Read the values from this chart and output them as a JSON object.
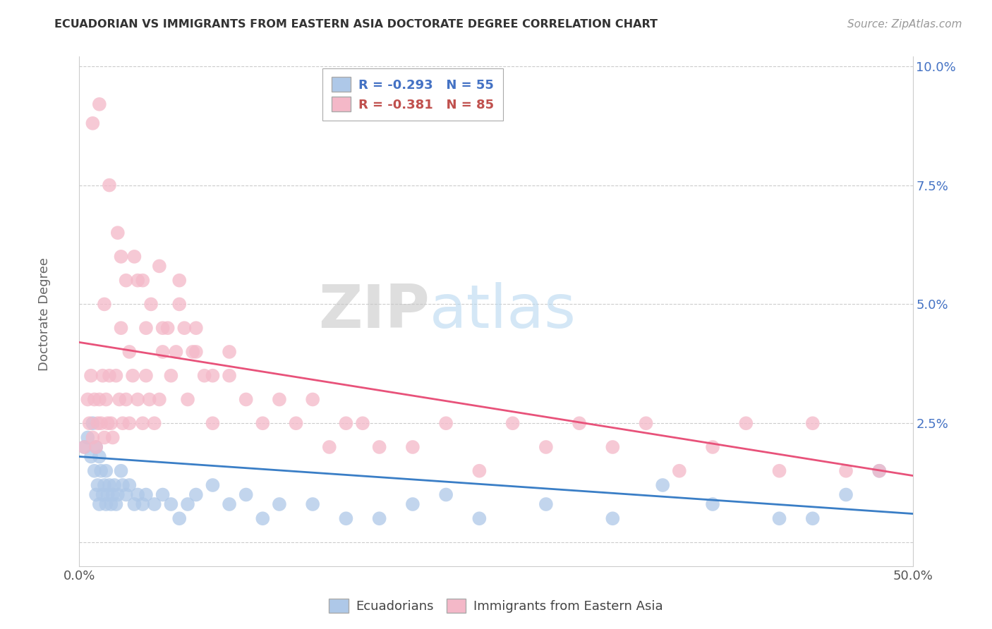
{
  "title": "ECUADORIAN VS IMMIGRANTS FROM EASTERN ASIA DOCTORATE DEGREE CORRELATION CHART",
  "source": "Source: ZipAtlas.com",
  "ylabel": "Doctorate Degree",
  "xlim": [
    0.0,
    0.5
  ],
  "ylim": [
    -0.005,
    0.102
  ],
  "yticks": [
    0.0,
    0.025,
    0.05,
    0.075,
    0.1
  ],
  "ytick_labels": [
    "",
    "2.5%",
    "5.0%",
    "7.5%",
    "10.0%"
  ],
  "legend_r1": "R = -0.293",
  "legend_n1": "N = 55",
  "legend_r2": "R = -0.381",
  "legend_n2": "N = 85",
  "blue_color": "#aec8e8",
  "pink_color": "#f4b8c8",
  "blue_line_color": "#3a7ec6",
  "pink_line_color": "#e8527a",
  "watermark_zip": "ZIP",
  "watermark_atlas": "atlas",
  "blue_x": [
    0.003,
    0.005,
    0.007,
    0.008,
    0.009,
    0.01,
    0.01,
    0.011,
    0.012,
    0.012,
    0.013,
    0.014,
    0.015,
    0.016,
    0.016,
    0.017,
    0.018,
    0.019,
    0.02,
    0.021,
    0.022,
    0.023,
    0.025,
    0.026,
    0.028,
    0.03,
    0.033,
    0.035,
    0.038,
    0.04,
    0.045,
    0.05,
    0.055,
    0.06,
    0.065,
    0.07,
    0.08,
    0.09,
    0.1,
    0.11,
    0.12,
    0.14,
    0.16,
    0.18,
    0.2,
    0.22,
    0.24,
    0.28,
    0.32,
    0.35,
    0.38,
    0.42,
    0.44,
    0.46,
    0.48
  ],
  "blue_y": [
    0.02,
    0.022,
    0.018,
    0.025,
    0.015,
    0.01,
    0.02,
    0.012,
    0.018,
    0.008,
    0.015,
    0.01,
    0.012,
    0.008,
    0.015,
    0.01,
    0.012,
    0.008,
    0.01,
    0.012,
    0.008,
    0.01,
    0.015,
    0.012,
    0.01,
    0.012,
    0.008,
    0.01,
    0.008,
    0.01,
    0.008,
    0.01,
    0.008,
    0.005,
    0.008,
    0.01,
    0.012,
    0.008,
    0.01,
    0.005,
    0.008,
    0.008,
    0.005,
    0.005,
    0.008,
    0.01,
    0.005,
    0.008,
    0.005,
    0.012,
    0.008,
    0.005,
    0.005,
    0.01,
    0.015
  ],
  "pink_x": [
    0.003,
    0.005,
    0.006,
    0.007,
    0.008,
    0.009,
    0.01,
    0.011,
    0.012,
    0.013,
    0.014,
    0.015,
    0.016,
    0.017,
    0.018,
    0.019,
    0.02,
    0.022,
    0.024,
    0.026,
    0.028,
    0.03,
    0.032,
    0.035,
    0.038,
    0.04,
    0.042,
    0.045,
    0.048,
    0.05,
    0.055,
    0.06,
    0.065,
    0.07,
    0.075,
    0.08,
    0.09,
    0.1,
    0.11,
    0.12,
    0.13,
    0.14,
    0.15,
    0.16,
    0.17,
    0.18,
    0.2,
    0.22,
    0.24,
    0.26,
    0.28,
    0.3,
    0.32,
    0.34,
    0.36,
    0.38,
    0.4,
    0.42,
    0.44,
    0.46,
    0.48,
    0.015,
    0.025,
    0.035,
    0.025,
    0.03,
    0.04,
    0.05,
    0.06,
    0.07,
    0.08,
    0.09,
    0.008,
    0.012,
    0.018,
    0.023,
    0.028,
    0.033,
    0.038,
    0.043,
    0.048,
    0.053,
    0.058,
    0.063,
    0.068
  ],
  "pink_y": [
    0.02,
    0.03,
    0.025,
    0.035,
    0.022,
    0.03,
    0.02,
    0.025,
    0.03,
    0.025,
    0.035,
    0.022,
    0.03,
    0.025,
    0.035,
    0.025,
    0.022,
    0.035,
    0.03,
    0.025,
    0.03,
    0.025,
    0.035,
    0.03,
    0.025,
    0.035,
    0.03,
    0.025,
    0.03,
    0.045,
    0.035,
    0.05,
    0.03,
    0.04,
    0.035,
    0.025,
    0.035,
    0.03,
    0.025,
    0.03,
    0.025,
    0.03,
    0.02,
    0.025,
    0.025,
    0.02,
    0.02,
    0.025,
    0.015,
    0.025,
    0.02,
    0.025,
    0.02,
    0.025,
    0.015,
    0.02,
    0.025,
    0.015,
    0.025,
    0.015,
    0.015,
    0.05,
    0.06,
    0.055,
    0.045,
    0.04,
    0.045,
    0.04,
    0.055,
    0.045,
    0.035,
    0.04,
    0.088,
    0.092,
    0.075,
    0.065,
    0.055,
    0.06,
    0.055,
    0.05,
    0.058,
    0.045,
    0.04,
    0.045,
    0.04
  ]
}
